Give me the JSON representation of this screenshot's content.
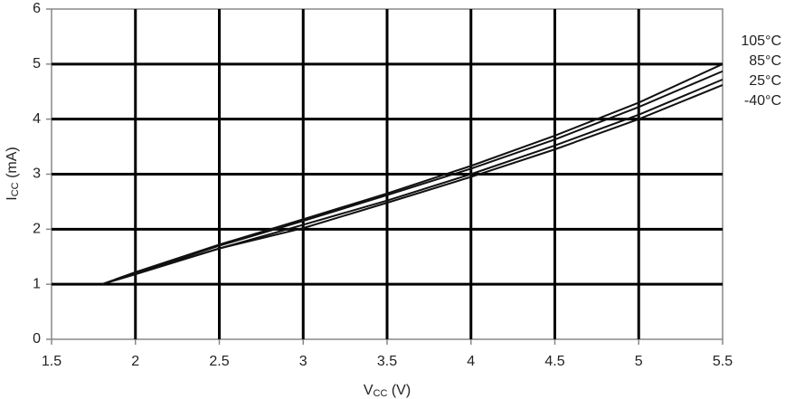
{
  "chart_data": {
    "type": "line",
    "x_label": [
      "V",
      "CC",
      " (V)"
    ],
    "y_label": [
      "I",
      "CC",
      " (mA)"
    ],
    "x": [
      1.8,
      2,
      2.5,
      3,
      3.5,
      4,
      4.5,
      5,
      5.5
    ],
    "series": [
      {
        "name": "105°C",
        "color": "#111111",
        "values": [
          1.0,
          1.22,
          1.72,
          2.18,
          2.65,
          3.15,
          3.7,
          4.3,
          5.0
        ]
      },
      {
        "name": "85°C",
        "color": "#111111",
        "values": [
          1.0,
          1.2,
          1.7,
          2.15,
          2.62,
          3.1,
          3.63,
          4.22,
          4.87
        ]
      },
      {
        "name": "25°C",
        "color": "#111111",
        "values": [
          1.0,
          1.18,
          1.65,
          2.08,
          2.52,
          3.0,
          3.52,
          4.08,
          4.72
        ]
      },
      {
        "name": "-40°C",
        "color": "#111111",
        "values": [
          1.0,
          1.2,
          1.65,
          2.02,
          2.48,
          2.95,
          3.45,
          4.0,
          4.62
        ]
      }
    ],
    "xlim": [
      1.5,
      5.5
    ],
    "xticks": [
      1.5,
      2,
      2.5,
      3,
      3.5,
      4,
      4.5,
      5,
      5.5
    ],
    "ylim": [
      0,
      6
    ],
    "yticks": [
      0,
      1,
      2,
      3,
      4,
      5,
      6
    ],
    "grid": true
  }
}
